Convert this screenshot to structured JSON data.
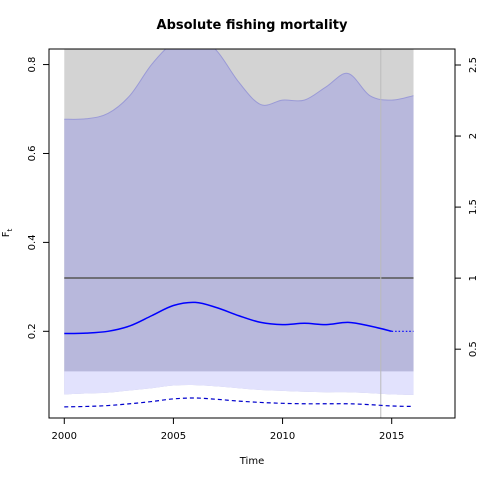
{
  "chart_data": {
    "type": "area",
    "title": "Absolute fishing mortality",
    "xlabel": "Time",
    "ylabel": "F",
    "ylabel_subscript": "t",
    "xlim": [
      1999.3,
      2017.9
    ],
    "ylim": [
      0.005,
      0.835
    ],
    "x_ticks": [
      2000,
      2005,
      2010,
      2015
    ],
    "y_ticks": [
      0.2,
      0.4,
      0.6,
      0.8
    ],
    "y2_ticks": [
      0.5,
      1,
      1.5,
      2,
      2.5
    ],
    "y2_ratio": 0.3196,
    "reference_line": {
      "value": 0.32,
      "color": "#555555"
    },
    "vertical_line": {
      "x": 2014.5,
      "color": "#bbbbbb"
    },
    "x": [
      2000,
      2001,
      2002,
      2003,
      2004,
      2005,
      2006,
      2007,
      2008,
      2009,
      2010,
      2011,
      2012,
      2013,
      2014,
      2015,
      2016
    ],
    "series": [
      {
        "name": "",
        "role": "relative_ci",
        "color": "#d3d3d3",
        "lower": [
          0.11,
          0.11,
          0.11,
          0.11,
          0.11,
          0.11,
          0.11,
          0.11,
          0.11,
          0.11,
          0.11,
          0.11,
          0.11,
          0.11,
          0.11,
          0.11,
          0.11
        ],
        "upper": [
          0.835,
          0.835,
          0.835,
          0.835,
          0.835,
          0.835,
          0.835,
          0.835,
          0.835,
          0.835,
          0.835,
          0.835,
          0.835,
          0.835,
          0.835,
          0.835,
          0.835
        ]
      },
      {
        "name": "",
        "role": "estimate_ci",
        "color": "#b8b8dc",
        "lower": [
          0.058,
          0.06,
          0.062,
          0.067,
          0.072,
          0.078,
          0.079,
          0.076,
          0.072,
          0.068,
          0.066,
          0.064,
          0.063,
          0.063,
          0.061,
          0.058,
          0.057
        ],
        "upper": [
          0.677,
          0.678,
          0.69,
          0.73,
          0.8,
          0.85,
          0.87,
          0.83,
          0.76,
          0.71,
          0.72,
          0.72,
          0.75,
          0.78,
          0.73,
          0.72,
          0.73
        ]
      },
      {
        "name": "",
        "role": "estimate",
        "color": "#0000ff",
        "values": [
          0.195,
          0.196,
          0.2,
          0.212,
          0.235,
          0.258,
          0.265,
          0.253,
          0.235,
          0.22,
          0.215,
          0.218,
          0.215,
          0.22,
          0.212,
          0.2,
          0.2
        ],
        "forecast_from_index": 15
      },
      {
        "name": "",
        "role": "lower_dashed",
        "color": "#0000cc",
        "values": [
          0.03,
          0.031,
          0.033,
          0.037,
          0.042,
          0.048,
          0.05,
          0.047,
          0.043,
          0.04,
          0.038,
          0.037,
          0.037,
          0.037,
          0.035,
          0.032,
          0.031
        ]
      }
    ],
    "light_band": {
      "color": "#e2e2fd",
      "lower": [
        0.058,
        0.06,
        0.062,
        0.067,
        0.072,
        0.078,
        0.079,
        0.076,
        0.072,
        0.068,
        0.066,
        0.064,
        0.063,
        0.063,
        0.061,
        0.058,
        0.057
      ],
      "upper": [
        0.11,
        0.11,
        0.11,
        0.11,
        0.11,
        0.11,
        0.11,
        0.11,
        0.11,
        0.11,
        0.11,
        0.11,
        0.11,
        0.11,
        0.11,
        0.11,
        0.11
      ]
    },
    "grid": false,
    "legend": "none"
  }
}
